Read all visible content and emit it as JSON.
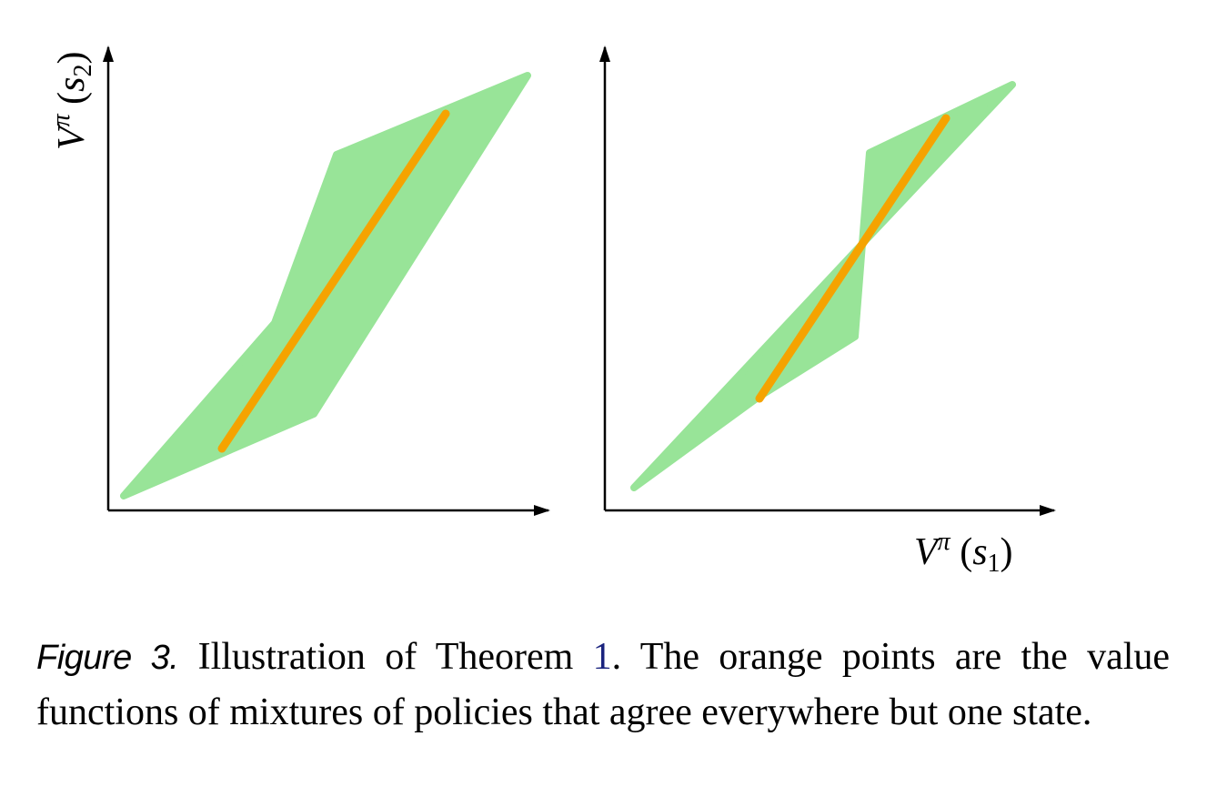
{
  "figure": {
    "y_axis_label": {
      "base": "V",
      "sup": "π",
      "arg": "s",
      "sub": "2"
    },
    "x_axis_label": {
      "base": "V",
      "sup": "π",
      "arg": "s",
      "sub": "1"
    },
    "colors": {
      "region": "#98e498",
      "line": "#f5a300",
      "axis": "#000000"
    }
  },
  "caption": {
    "label": "Figure 3.",
    "text_before_ref": "Illustration of Theorem",
    "ref": "1",
    "text_after_ref": ".  The orange points are the value functions of mixtures of policies that agree everywhere but one state."
  }
}
